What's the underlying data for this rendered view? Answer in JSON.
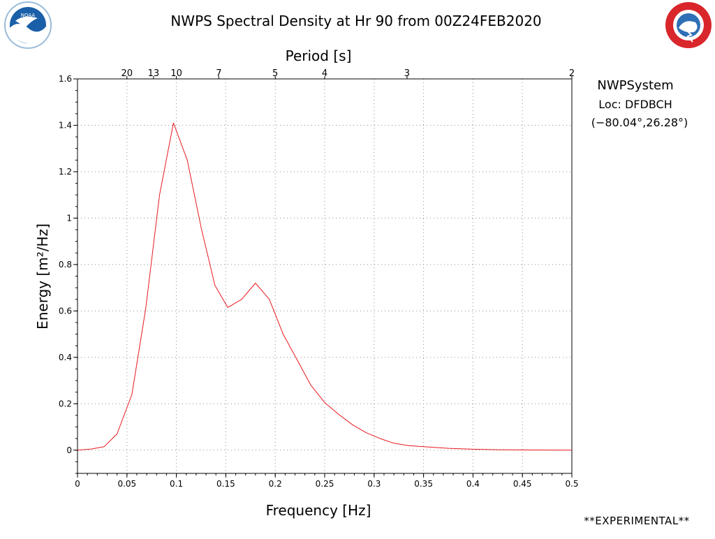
{
  "header": {
    "title": "NWPS Spectral Density at Hr 90 from 00Z24FEB2020"
  },
  "logos": {
    "left": {
      "text": "NOAA",
      "icon": "noaa-logo-icon",
      "color": "#1b5fa8"
    },
    "right": {
      "text": "NATIONAL WEATHER SERVICE",
      "icon": "nws-logo-icon",
      "color": "#d8262b"
    }
  },
  "info": {
    "system": "NWPSystem",
    "location": "Loc: DFDBCH",
    "coords": "(−80.04°,26.28°)"
  },
  "footer": {
    "experimental": "**EXPERIMENTAL**"
  },
  "chart_data": {
    "type": "line",
    "xlabel": "Frequency [Hz]",
    "ylabel": "Energy [m²/Hz]",
    "top_axis_label": "Period [s]",
    "xlim": [
      0,
      0.5
    ],
    "ylim": [
      -0.1,
      1.6
    ],
    "xticks": [
      0,
      0.05,
      0.1,
      0.15,
      0.2,
      0.25,
      0.3,
      0.35,
      0.4,
      0.45,
      0.5
    ],
    "xtick_labels": [
      "0",
      "0.05",
      "0.1",
      "0.15",
      "0.2",
      "0.25",
      "0.3",
      "0.35",
      "0.4",
      "0.45",
      "0.5"
    ],
    "yticks": [
      0,
      0.2,
      0.4,
      0.6,
      0.8,
      1.0,
      1.2,
      1.4,
      1.6
    ],
    "ytick_labels": [
      "0",
      "0.2",
      "0.4",
      "0.6",
      "0.8",
      "1",
      "1.2",
      "1.4",
      "1.6"
    ],
    "period_ticks": [
      {
        "label": "20",
        "freq": 0.05
      },
      {
        "label": "13",
        "freq": 0.0769
      },
      {
        "label": "10",
        "freq": 0.1
      },
      {
        "label": "7",
        "freq": 0.1429
      },
      {
        "label": "5",
        "freq": 0.2
      },
      {
        "label": "4",
        "freq": 0.25
      },
      {
        "label": "3",
        "freq": 0.3333
      },
      {
        "label": "2",
        "freq": 0.5
      }
    ],
    "grid": true,
    "series": [
      {
        "color": "#e8191e",
        "x": [
          0.0,
          0.014,
          0.027,
          0.04,
          0.055,
          0.069,
          0.083,
          0.097,
          0.111,
          0.125,
          0.139,
          0.152,
          0.166,
          0.18,
          0.194,
          0.208,
          0.222,
          0.236,
          0.25,
          0.264,
          0.278,
          0.292,
          0.306,
          0.32,
          0.334,
          0.35,
          0.375,
          0.4,
          0.425,
          0.45,
          0.475,
          0.5
        ],
        "y": [
          0.0,
          0.005,
          0.015,
          0.07,
          0.24,
          0.61,
          1.1,
          1.41,
          1.25,
          0.96,
          0.71,
          0.615,
          0.65,
          0.72,
          0.65,
          0.5,
          0.39,
          0.28,
          0.205,
          0.155,
          0.11,
          0.075,
          0.05,
          0.03,
          0.02,
          0.015,
          0.008,
          0.004,
          0.002,
          0.001,
          0.0005,
          0.0
        ]
      }
    ]
  }
}
